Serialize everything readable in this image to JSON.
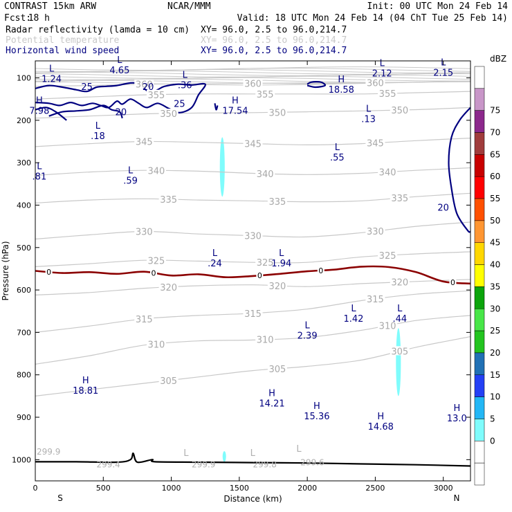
{
  "header": {
    "title": "CONTRAST 15km ARW",
    "org": "NCAR/MMM",
    "init": "Init: 00 UTC Mon 24 Feb 14",
    "fcst_label": "Fcst:",
    "fcst_value": "18 h",
    "valid": "Valid: 18 UTC Mon 24 Feb 14 (04 ChT Tue 25 Feb 14)",
    "fields": [
      {
        "name": "Radar reflectivity (lamda = 10 cm)",
        "xy": "XY=  96.0,  2.5 to  96.0,214.7",
        "color": "#000000"
      },
      {
        "name": "Potential temperature",
        "xy": "XY=  96.0,  2.5 to  96.0,214.7",
        "color": "#c8c8c8"
      },
      {
        "name": "Horizontal wind speed",
        "xy": "XY=  96.0,  2.5 to  96.0,214.7",
        "color": "#000080"
      }
    ]
  },
  "chart_data": {
    "type": "contour_cross_section",
    "xlabel": "Distance (km)",
    "ylabel": "Pressure (hPa)",
    "xlim": [
      0,
      3200
    ],
    "ylim": [
      1050,
      60
    ],
    "x_ticks": [
      0,
      500,
      1000,
      1500,
      2000,
      2500,
      3000
    ],
    "y_ticks": [
      100,
      200,
      300,
      400,
      500,
      600,
      700,
      800,
      900,
      1000
    ],
    "x_endpoints": {
      "left": "S",
      "right": "N"
    },
    "colorbar": {
      "unit": "dBZ",
      "levels": [
        "0",
        "5",
        "10",
        "15",
        "20",
        "25",
        "30",
        "35",
        "40",
        "45",
        "50",
        "55",
        "60",
        "65",
        "70",
        "75"
      ],
      "colors": [
        "#ffffff",
        "#ffffff",
        "#7ffcfc",
        "#23b7f5",
        "#2440f5",
        "#2171b5",
        "#23c41f",
        "#48e648",
        "#0ba40b",
        "#ffff00",
        "#ffd700",
        "#ff9632",
        "#ff5000",
        "#ff0000",
        "#c80000",
        "#a03c3c",
        "#8c288c",
        "#c896c8",
        "#ffffff"
      ]
    },
    "theta_contours": [
      {
        "value": 305,
        "label": "305",
        "p": 520,
        "points": [
          [
            0,
            850
          ],
          [
            400,
            835
          ],
          [
            800,
            820
          ],
          [
            1200,
            805
          ],
          [
            1600,
            790
          ],
          [
            2000,
            780
          ],
          [
            2400,
            765
          ],
          [
            2800,
            735
          ],
          [
            3200,
            710
          ]
        ]
      },
      {
        "value": 310,
        "label": "310",
        "p": 486,
        "points": [
          [
            0,
            775
          ],
          [
            400,
            755
          ],
          [
            800,
            730
          ],
          [
            1200,
            720
          ],
          [
            1600,
            718
          ],
          [
            2000,
            712
          ],
          [
            2400,
            695
          ],
          [
            2800,
            672
          ],
          [
            3200,
            660
          ]
        ]
      },
      {
        "value": 315,
        "label": "315",
        "p": 258,
        "points": [
          [
            0,
            700
          ],
          [
            400,
            685
          ],
          [
            800,
            668
          ],
          [
            1200,
            660
          ],
          [
            1600,
            655
          ],
          [
            2000,
            645
          ],
          [
            2400,
            625
          ],
          [
            2800,
            610
          ],
          [
            3200,
            602
          ]
        ]
      },
      {
        "value": 320,
        "label": "320",
        "p": 342,
        "points": [
          [
            0,
            612
          ],
          [
            400,
            606
          ],
          [
            800,
            596
          ],
          [
            1200,
            590
          ],
          [
            1600,
            588
          ],
          [
            2000,
            592
          ],
          [
            2400,
            585
          ],
          [
            2800,
            580
          ],
          [
            3200,
            575
          ]
        ]
      },
      {
        "value": 325,
        "label": "325",
        "p": 515,
        "points": [
          [
            0,
            545
          ],
          [
            400,
            538
          ],
          [
            800,
            530
          ],
          [
            1200,
            532
          ],
          [
            1600,
            535
          ],
          [
            2000,
            535
          ],
          [
            2400,
            522
          ],
          [
            2800,
            515
          ],
          [
            3200,
            510
          ]
        ]
      },
      {
        "value": 330,
        "label": "330",
        "p": 445,
        "points": [
          [
            0,
            480
          ],
          [
            400,
            470
          ],
          [
            800,
            462
          ],
          [
            1200,
            468
          ],
          [
            1600,
            472
          ],
          [
            2000,
            475
          ],
          [
            2400,
            465
          ],
          [
            2800,
            450
          ],
          [
            3200,
            440
          ]
        ]
      },
      {
        "value": 335,
        "label": "335",
        "p": 450,
        "points": [
          [
            0,
            395
          ],
          [
            400,
            388
          ],
          [
            800,
            385
          ],
          [
            1200,
            388
          ],
          [
            1600,
            390
          ],
          [
            2000,
            392
          ],
          [
            2400,
            390
          ],
          [
            2800,
            380
          ],
          [
            3200,
            372
          ]
        ]
      },
      {
        "value": 340,
        "label": "340",
        "p": 505,
        "points": [
          [
            0,
            330
          ],
          [
            400,
            322
          ],
          [
            800,
            318
          ],
          [
            1200,
            320
          ],
          [
            1600,
            325
          ],
          [
            2000,
            328
          ],
          [
            2400,
            325
          ],
          [
            2800,
            318
          ],
          [
            3200,
            312
          ]
        ]
      },
      {
        "value": 345,
        "label": "345",
        "p": 490,
        "points": [
          [
            0,
            262
          ],
          [
            400,
            255
          ],
          [
            800,
            250
          ],
          [
            1200,
            252
          ],
          [
            1600,
            255
          ],
          [
            2000,
            258
          ],
          [
            2400,
            255
          ],
          [
            2800,
            248
          ],
          [
            3200,
            242
          ]
        ]
      },
      {
        "value": 350,
        "label": "350",
        "p": 478,
        "points": [
          [
            0,
            195
          ],
          [
            400,
            190
          ],
          [
            800,
            185
          ],
          [
            1200,
            183
          ],
          [
            1600,
            182
          ],
          [
            2000,
            180
          ],
          [
            2400,
            178
          ],
          [
            2800,
            175
          ],
          [
            3200,
            170
          ]
        ]
      },
      {
        "value": 355,
        "label": "355",
        "p": 862,
        "points": [
          [
            0,
            150
          ],
          [
            400,
            145
          ],
          [
            800,
            140
          ],
          [
            1200,
            138
          ],
          [
            1600,
            138
          ],
          [
            2000,
            138
          ],
          [
            2400,
            138
          ],
          [
            2800,
            135
          ],
          [
            3200,
            132
          ]
        ]
      },
      {
        "value": 360,
        "label": "360",
        "p": 585,
        "points": [
          [
            0,
            120
          ],
          [
            400,
            118
          ],
          [
            800,
            115
          ],
          [
            1200,
            114
          ],
          [
            1600,
            113
          ],
          [
            2000,
            112
          ],
          [
            2400,
            112
          ],
          [
            2800,
            110
          ],
          [
            3200,
            108
          ]
        ]
      }
    ],
    "freezing_level": {
      "label": "0",
      "points": [
        [
          0,
          555
        ],
        [
          200,
          560
        ],
        [
          400,
          558
        ],
        [
          600,
          562
        ],
        [
          800,
          557
        ],
        [
          1000,
          566
        ],
        [
          1200,
          563
        ],
        [
          1400,
          570
        ],
        [
          1600,
          567
        ],
        [
          1800,
          562
        ],
        [
          2000,
          556
        ],
        [
          2200,
          552
        ],
        [
          2400,
          545
        ],
        [
          2600,
          546
        ],
        [
          2800,
          558
        ],
        [
          3000,
          580
        ],
        [
          3200,
          585
        ]
      ]
    },
    "terrain": {
      "points": [
        [
          0,
          1005
        ],
        [
          300,
          1005
        ],
        [
          600,
          1006
        ],
        [
          700,
          1000
        ],
        [
          720,
          985
        ],
        [
          750,
          1006
        ],
        [
          860,
          1000
        ],
        [
          880,
          1005
        ],
        [
          1200,
          1006
        ],
        [
          1600,
          1007
        ],
        [
          2000,
          1008
        ],
        [
          2400,
          1010
        ],
        [
          2800,
          1012
        ],
        [
          3200,
          1015
        ]
      ]
    },
    "wind_contour_labels": [
      {
        "label": "25",
        "x": 380,
        "p": 120
      },
      {
        "label": "20",
        "x": 830,
        "p": 120
      },
      {
        "label": "25",
        "x": 1060,
        "p": 160
      },
      {
        "label": "20",
        "x": 630,
        "p": 180
      },
      {
        "label": "20",
        "x": 3000,
        "p": 405
      }
    ],
    "extrema": [
      {
        "type": "L",
        "value": "1.24",
        "x": 120,
        "p": 95
      },
      {
        "type": "L",
        "value": "4.65",
        "x": 620,
        "p": 75
      },
      {
        "type": "L",
        "value": ".36",
        "x": 1100,
        "p": 110
      },
      {
        "type": "H",
        "value": "18.58",
        "x": 2250,
        "p": 120
      },
      {
        "type": "L",
        "value": "2.12",
        "x": 2550,
        "p": 82
      },
      {
        "type": "L",
        "value": "2.15",
        "x": 3000,
        "p": 80
      },
      {
        "type": "H",
        "value": "7.98",
        "x": 30,
        "p": 170
      },
      {
        "type": "H",
        "value": "17.54",
        "x": 1470,
        "p": 170
      },
      {
        "type": "L",
        "value": ".13",
        "x": 2450,
        "p": 190
      },
      {
        "type": "L",
        "value": ".18",
        "x": 460,
        "p": 230
      },
      {
        "type": "L",
        "value": ".55",
        "x": 2220,
        "p": 280
      },
      {
        "type": "L",
        "value": ".81",
        "x": 30,
        "p": 325
      },
      {
        "type": "L",
        "value": ".59",
        "x": 700,
        "p": 335
      },
      {
        "type": "L",
        "value": ".24",
        "x": 1320,
        "p": 530
      },
      {
        "type": "L",
        "value": "1.94",
        "x": 1810,
        "p": 530
      },
      {
        "type": "L",
        "value": "1.42",
        "x": 2340,
        "p": 660
      },
      {
        "type": "L",
        "value": ".44",
        "x": 2680,
        "p": 660
      },
      {
        "type": "L",
        "value": "2.39",
        "x": 2000,
        "p": 700
      },
      {
        "type": "H",
        "value": "18.81",
        "x": 370,
        "p": 830
      },
      {
        "type": "H",
        "value": "14.21",
        "x": 1740,
        "p": 860
      },
      {
        "type": "H",
        "value": "15.36",
        "x": 2070,
        "p": 890
      },
      {
        "type": "H",
        "value": "14.68",
        "x": 2540,
        "p": 915
      },
      {
        "type": "H",
        "value": "13.0",
        "x": 3100,
        "p": 895
      }
    ],
    "theta_surface_labels": [
      {
        "label": "299.9",
        "x": 0,
        "p": 980
      },
      {
        "label": "299.4",
        "x": 450,
        "p": 1010
      },
      {
        "label": "299.9",
        "x": 1150,
        "p": 1010
      },
      {
        "label": "299.8",
        "x": 1600,
        "p": 1010
      },
      {
        "label": "299.6",
        "x": 1950,
        "p": 1005
      }
    ],
    "theta_surface_L": [
      {
        "x": 1090,
        "p": 985
      },
      {
        "x": 1580,
        "p": 985
      },
      {
        "x": 1920,
        "p": 975
      }
    ],
    "reflectivity_cells": [
      {
        "x": 1375,
        "p_top": 240,
        "p_bottom": 380,
        "halfwidth_km": 18,
        "dbz": 10
      },
      {
        "x": 2670,
        "p_top": 690,
        "p_bottom": 850,
        "halfwidth_km": 18,
        "dbz": 10
      },
      {
        "x": 1390,
        "p_top": 980,
        "p_bottom": 1005,
        "halfwidth_km": 6,
        "dbz": 10
      }
    ]
  }
}
